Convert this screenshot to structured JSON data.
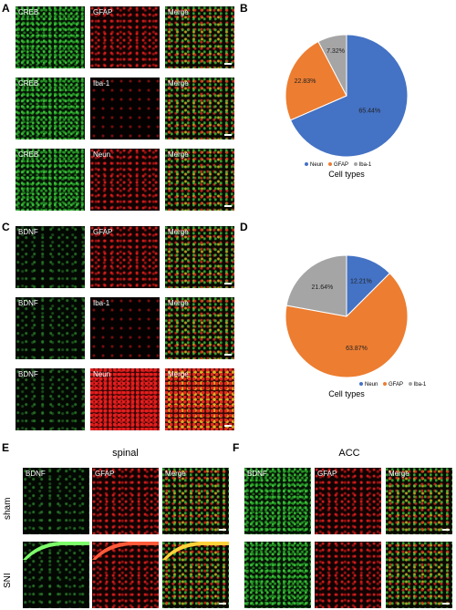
{
  "panels": {
    "A": {
      "letter": "A",
      "rows": [
        {
          "labels": [
            "CREB",
            "GFAP",
            "Merge"
          ]
        },
        {
          "labels": [
            "CREB",
            "Iba-1",
            "Merge"
          ]
        },
        {
          "labels": [
            "CREB",
            "Neun",
            "Merge"
          ]
        }
      ]
    },
    "B": {
      "letter": "B"
    },
    "C": {
      "letter": "C",
      "rows": [
        {
          "labels": [
            "BDNF",
            "GFAP",
            "Merge"
          ]
        },
        {
          "labels": [
            "BDNF",
            "Iba-1",
            "Merge"
          ]
        },
        {
          "labels": [
            "BDNF",
            "Neun",
            "Merge"
          ]
        }
      ]
    },
    "D": {
      "letter": "D"
    },
    "E": {
      "letter": "E",
      "title": "spinal",
      "row_labels": [
        "sham",
        "SNI"
      ],
      "rows": [
        {
          "labels": [
            "BDNF",
            "GFAP",
            "Merge"
          ]
        },
        {
          "labels": [
            "",
            "",
            ""
          ]
        }
      ]
    },
    "F": {
      "letter": "F",
      "title": "ACC",
      "rows": [
        {
          "labels": [
            "BDNF",
            "GFAP",
            "Merge"
          ]
        },
        {
          "labels": [
            "",
            "",
            ""
          ]
        }
      ]
    }
  },
  "chart_data": [
    {
      "type": "pie",
      "xlabel": "Cell types",
      "categories": [
        "Neun",
        "GFAP",
        "Iba-1"
      ],
      "values": [
        65.44,
        22.83,
        7.32
      ],
      "value_labels": [
        "65.44%",
        "22.83%",
        "7.32%"
      ],
      "colors": [
        "#4472c4",
        "#ed7d31",
        "#a5a5a5"
      ],
      "legend_position": "bottom"
    },
    {
      "type": "pie",
      "xlabel": "Cell types",
      "categories": [
        "Neun",
        "GFAP",
        "Iba-1"
      ],
      "values": [
        12.21,
        63.87,
        21.64
      ],
      "value_labels": [
        "12.21%",
        "63.87%",
        "21.64%"
      ],
      "colors": [
        "#4472c4",
        "#ed7d31",
        "#a5a5a5"
      ],
      "legend_position": "bottom"
    }
  ]
}
